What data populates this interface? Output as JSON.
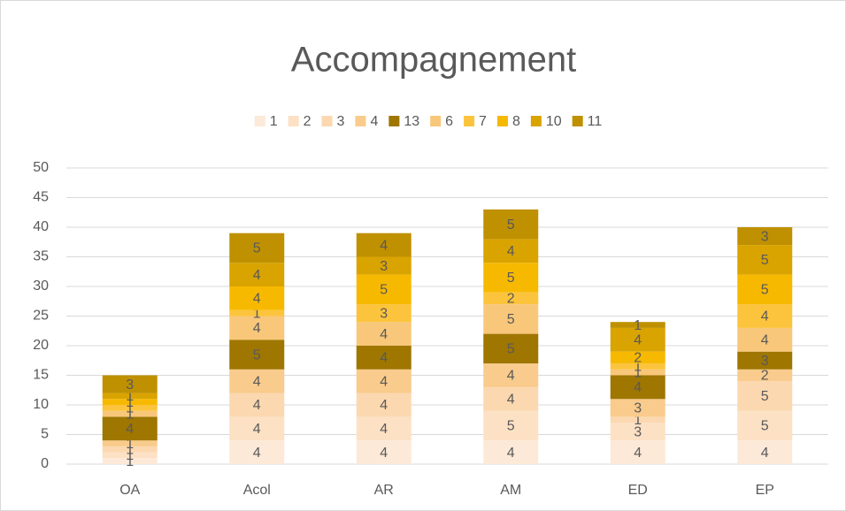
{
  "chart_data": {
    "type": "stacked_bar",
    "title": "Accompagnement",
    "categories": [
      "OA",
      "Acol",
      "AR",
      "AM",
      "ED",
      "EP"
    ],
    "series": [
      {
        "name": "1",
        "color": "#fde9d8",
        "values": [
          1,
          4,
          4,
          4,
          4,
          4
        ]
      },
      {
        "name": "2",
        "color": "#fde1c5",
        "values": [
          1,
          4,
          4,
          5,
          3,
          5
        ]
      },
      {
        "name": "3",
        "color": "#fcd8b0",
        "values": [
          1,
          4,
          4,
          4,
          1,
          5
        ]
      },
      {
        "name": "4",
        "color": "#f9cb8c",
        "values": [
          1,
          4,
          4,
          4,
          3,
          2
        ]
      },
      {
        "name": "13",
        "color": "#9e7600",
        "values": [
          4,
          5,
          4,
          5,
          4,
          3
        ]
      },
      {
        "name": "6",
        "color": "#f8c77a",
        "values": [
          1,
          4,
          4,
          5,
          1,
          4
        ]
      },
      {
        "name": "7",
        "color": "#fcc43c",
        "values": [
          1,
          1,
          3,
          2,
          1,
          4
        ]
      },
      {
        "name": "8",
        "color": "#f7b900",
        "values": [
          1,
          4,
          5,
          5,
          2,
          5
        ]
      },
      {
        "name": "10",
        "color": "#d9a300",
        "values": [
          1,
          4,
          3,
          4,
          4,
          5
        ]
      },
      {
        "name": "11",
        "color": "#bf9000",
        "values": [
          3,
          5,
          4,
          5,
          1,
          3
        ]
      }
    ],
    "ylim": [
      0,
      50
    ],
    "yticks": [
      0,
      5,
      10,
      15,
      20,
      25,
      30,
      35,
      40,
      45,
      50
    ],
    "grid": true,
    "legend": "top"
  }
}
